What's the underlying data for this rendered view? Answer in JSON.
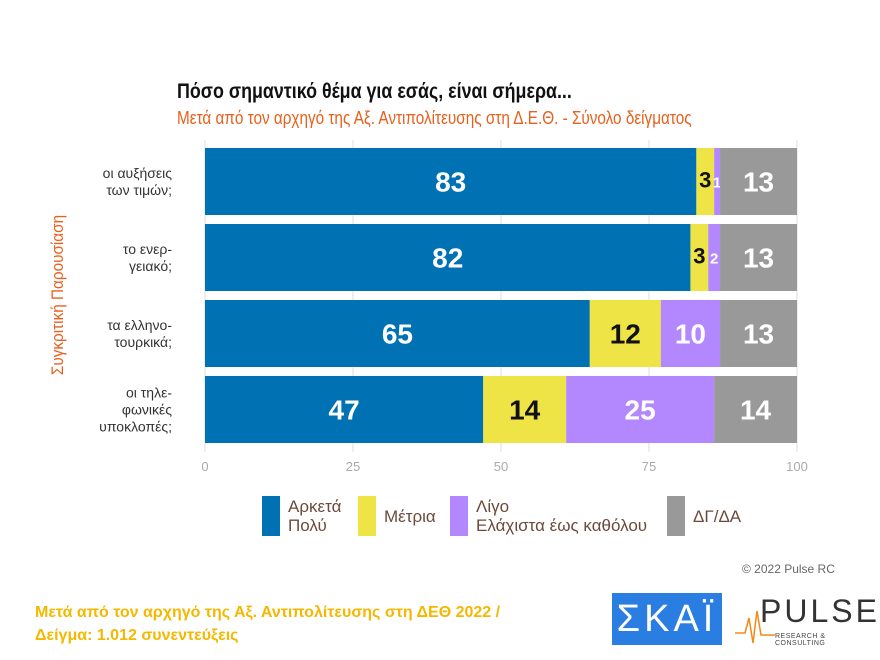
{
  "chart_data": {
    "type": "bar",
    "orientation": "horizontal",
    "stacked": true,
    "title": "Πόσο σημαντικό θέμα για εσάς, είναι σήμερα...",
    "subtitle": "Μετά από τον αρχηγό της Αξ. Αντιπολίτευσης στη Δ.Ε.Θ.  -  Σύνολο δείγματος",
    "ylabel": "Συγκριτική  Παρουσίαση",
    "categories": [
      [
        "οι αυξήσεις",
        "των τιμών;"
      ],
      [
        "το ενερ-",
        "γειακό;"
      ],
      [
        "τα ελληνο-",
        "τουρκικά;"
      ],
      [
        "οι τηλε-",
        "φωνικές",
        "υποκλοπές;"
      ]
    ],
    "series": [
      {
        "name": "Αρκετά Πολύ",
        "name_lines": [
          "Αρκετά",
          "Πολύ"
        ],
        "color": "#0071b3",
        "label_color": "#ffffff",
        "values": [
          83,
          82,
          65,
          47
        ]
      },
      {
        "name": "Μέτρια",
        "name_lines": [
          "Μέτρια"
        ],
        "color": "#eee445",
        "label_color": "#111111",
        "values": [
          3,
          3,
          12,
          14
        ]
      },
      {
        "name": "Λίγο Ελάχιστα έως καθόλου",
        "name_lines": [
          "Λίγο",
          "Ελάχιστα έως καθόλου"
        ],
        "color": "#b388ff",
        "label_color": "#ffffff",
        "values": [
          1,
          2,
          10,
          25
        ]
      },
      {
        "name": "ΔΓ/ΔΑ",
        "name_lines": [
          "ΔΓ/ΔΑ"
        ],
        "color": "#999999",
        "label_color": "#ffffff",
        "values": [
          13,
          13,
          13,
          14
        ]
      }
    ],
    "xlim": [
      0,
      100
    ],
    "xticks": [
      0,
      25,
      50,
      75,
      100
    ],
    "grid": true,
    "legend": "bottom"
  },
  "footer": {
    "copyright": "© 2022 Pulse RC",
    "line1": "Μετά από τον αρχηγό της Αξ. Αντιπολίτευσης στη ΔΕΘ  2022  /",
    "line2": "Δείγμα:  1.012 συνεντεύξεις"
  },
  "logos": {
    "skai": "ΣΚΑΪ",
    "pulse": "PULSE",
    "pulse_sub": "RESEARCH & CONSULTING"
  }
}
